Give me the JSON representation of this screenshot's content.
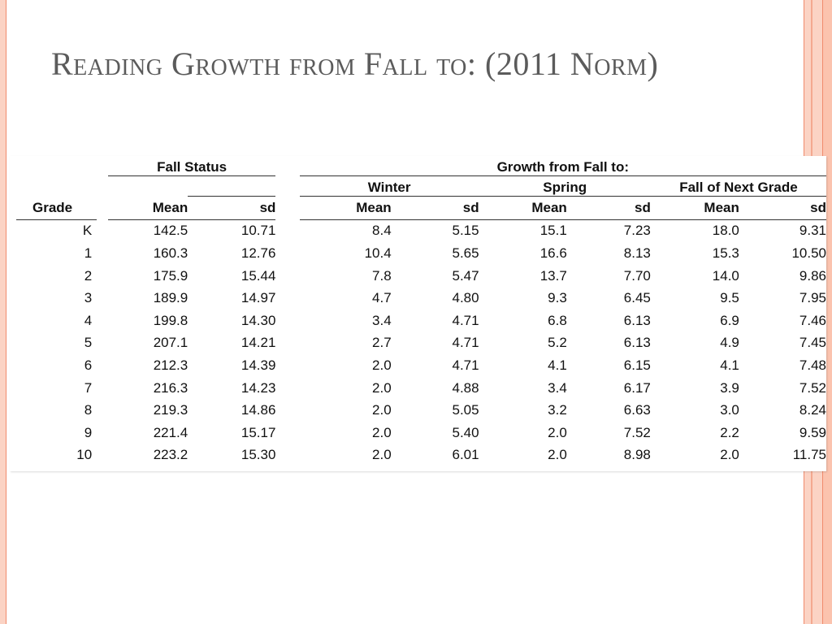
{
  "slide": {
    "title": "Reading Growth from Fall to: (2011 Norm)"
  },
  "table": {
    "group_headers": {
      "fall_status": "Fall Status",
      "growth": "Growth from Fall to:"
    },
    "sub_headers": {
      "winter": "Winter",
      "spring": "Spring",
      "next_grade": "Fall of Next Grade"
    },
    "columns": {
      "grade": "Grade",
      "fall_mean": "Mean",
      "fall_sd": "sd",
      "winter_mean": "Mean",
      "winter_sd": "sd",
      "spring_mean": "Mean",
      "spring_sd": "sd",
      "next_mean": "Mean",
      "next_sd": "sd"
    },
    "rows": [
      [
        "K",
        "142.5",
        "10.71",
        "8.4",
        "5.15",
        "15.1",
        "7.23",
        "18.0",
        "9.31"
      ],
      [
        "1",
        "160.3",
        "12.76",
        "10.4",
        "5.65",
        "16.6",
        "8.13",
        "15.3",
        "10.50"
      ],
      [
        "2",
        "175.9",
        "15.44",
        "7.8",
        "5.47",
        "13.7",
        "7.70",
        "14.0",
        "9.86"
      ],
      [
        "3",
        "189.9",
        "14.97",
        "4.7",
        "4.80",
        "9.3",
        "6.45",
        "9.5",
        "7.95"
      ],
      [
        "4",
        "199.8",
        "14.30",
        "3.4",
        "4.71",
        "6.8",
        "6.13",
        "6.9",
        "7.46"
      ],
      [
        "5",
        "207.1",
        "14.21",
        "2.7",
        "4.71",
        "5.2",
        "6.13",
        "4.9",
        "7.45"
      ],
      [
        "6",
        "212.3",
        "14.39",
        "2.0",
        "4.71",
        "4.1",
        "6.15",
        "4.1",
        "7.48"
      ],
      [
        "7",
        "216.3",
        "14.23",
        "2.0",
        "4.88",
        "3.4",
        "6.17",
        "3.9",
        "7.52"
      ],
      [
        "8",
        "219.3",
        "14.86",
        "2.0",
        "5.05",
        "3.2",
        "6.63",
        "3.0",
        "8.24"
      ],
      [
        "9",
        "221.4",
        "15.17",
        "2.0",
        "5.40",
        "2.0",
        "7.52",
        "2.2",
        "9.59"
      ],
      [
        "10",
        "223.2",
        "15.30",
        "2.0",
        "6.01",
        "2.0",
        "8.98",
        "2.0",
        "11.75"
      ]
    ]
  },
  "colors": {
    "title": "#5b5b5b",
    "stripe_light": "#fbd3c4",
    "stripe_dark": "#f08a6c"
  }
}
